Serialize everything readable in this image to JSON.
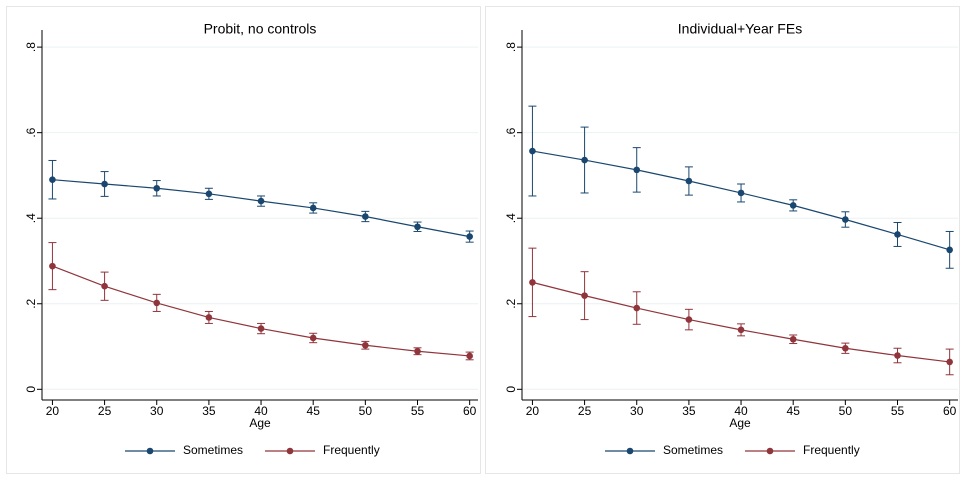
{
  "chart_data": [
    {
      "type": "line",
      "title": "Probit, no controls",
      "x_label": "Age",
      "x": [
        20,
        25,
        30,
        35,
        40,
        45,
        50,
        55,
        60
      ],
      "series": [
        {
          "name": "Sometimes",
          "color": "#1a476f",
          "values": [
            0.49,
            0.48,
            0.47,
            0.457,
            0.44,
            0.424,
            0.404,
            0.38,
            0.357
          ],
          "errors": [
            0.045,
            0.029,
            0.018,
            0.013,
            0.012,
            0.012,
            0.012,
            0.011,
            0.013
          ]
        },
        {
          "name": "Frequently",
          "color": "#90353b",
          "values": [
            0.288,
            0.241,
            0.202,
            0.168,
            0.142,
            0.12,
            0.103,
            0.089,
            0.078
          ],
          "errors": [
            0.055,
            0.033,
            0.02,
            0.014,
            0.012,
            0.011,
            0.009,
            0.008,
            0.009
          ]
        }
      ],
      "xlim": [
        19,
        60.8
      ],
      "xticks": [
        20,
        25,
        30,
        35,
        40,
        45,
        50,
        55,
        60
      ],
      "ylim": [
        -0.025,
        0.84
      ],
      "yticks": [
        0,
        {
          "value": 0.2,
          "label": ".2"
        },
        {
          "value": 0.4,
          "label": ".4"
        },
        {
          "value": 0.6,
          "label": ".6"
        },
        {
          "value": 0.8,
          "label": ".8"
        }
      ],
      "grid": true,
      "legend": "bottom"
    },
    {
      "type": "line",
      "title": "Individual+Year FEs",
      "x_label": "Age",
      "x": [
        20,
        25,
        30,
        35,
        40,
        45,
        50,
        55,
        60
      ],
      "series": [
        {
          "name": "Sometimes",
          "color": "#1a476f",
          "values": [
            0.557,
            0.536,
            0.513,
            0.487,
            0.459,
            0.43,
            0.397,
            0.362,
            0.326
          ],
          "errors": [
            0.105,
            0.077,
            0.052,
            0.033,
            0.021,
            0.013,
            0.018,
            0.028,
            0.043
          ]
        },
        {
          "name": "Frequently",
          "color": "#90353b",
          "values": [
            0.25,
            0.219,
            0.19,
            0.163,
            0.139,
            0.117,
            0.096,
            0.079,
            0.064
          ],
          "errors": [
            0.08,
            0.056,
            0.038,
            0.024,
            0.014,
            0.01,
            0.012,
            0.017,
            0.03
          ]
        }
      ],
      "xlim": [
        19,
        60.8
      ],
      "xticks": [
        20,
        25,
        30,
        35,
        40,
        45,
        50,
        55,
        60
      ],
      "ylim": [
        -0.025,
        0.84
      ],
      "yticks": [
        0,
        {
          "value": 0.2,
          "label": ".2"
        },
        {
          "value": 0.4,
          "label": ".4"
        },
        {
          "value": 0.6,
          "label": ".6"
        },
        {
          "value": 0.8,
          "label": ".8"
        }
      ],
      "grid": true,
      "legend": "bottom"
    }
  ]
}
